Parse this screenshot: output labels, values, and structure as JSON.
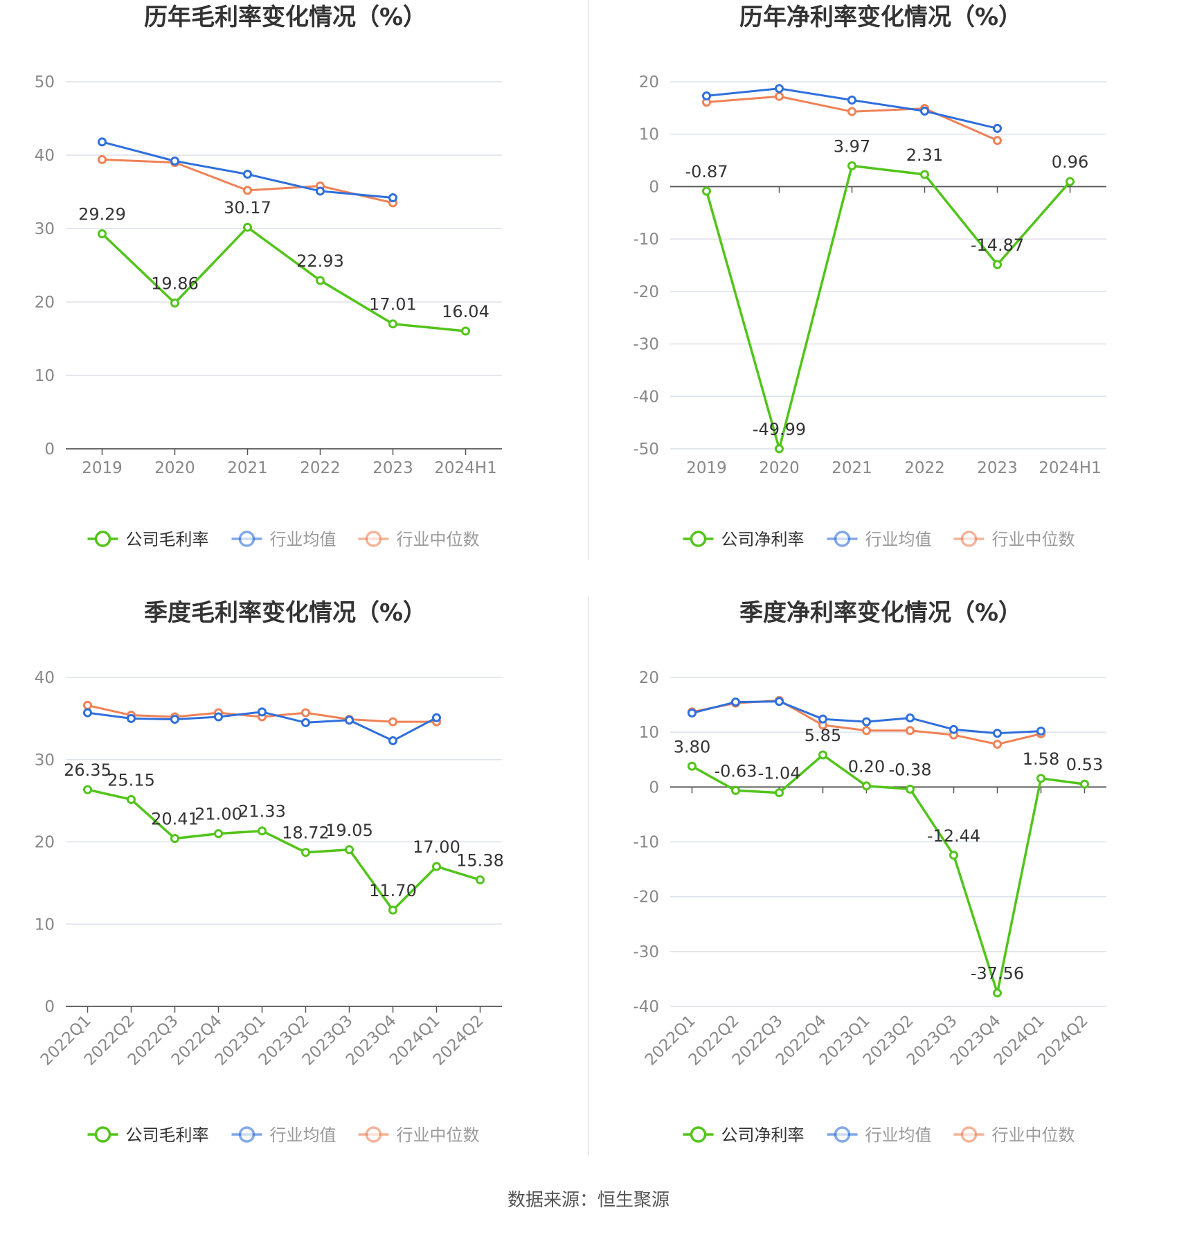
{
  "colors": {
    "company": "#52c41a",
    "average": "#2f6fdc",
    "median": "#f08156",
    "grid": "#dde1ea",
    "axis": "#555555",
    "tick_text": "#888888",
    "title_text": "#333333",
    "label_text": "#333333",
    "divider": "#e6e6e6"
  },
  "source_text": "数据来源：恒生聚源",
  "chart_data": [
    {
      "type": "line",
      "title": "历年毛利率变化情况（%）",
      "categories": [
        "2019",
        "2020",
        "2021",
        "2022",
        "2023",
        "2024H1"
      ],
      "yticks": [
        0,
        10,
        20,
        30,
        40,
        50
      ],
      "ylim": [
        0,
        50
      ],
      "rotate_labels": false,
      "legend_position": "bottom",
      "series": [
        {
          "name": "公司毛利率",
          "key": "company",
          "values": [
            29.29,
            19.86,
            30.17,
            22.93,
            17.01,
            16.04
          ],
          "labels": [
            "29.29",
            "19.86",
            "30.17",
            "22.93",
            "17.01",
            "16.04"
          ]
        },
        {
          "name": "行业均值",
          "key": "average",
          "values": [
            41.8,
            39.2,
            37.4,
            35.1,
            34.2,
            null
          ]
        },
        {
          "name": "行业中位数",
          "key": "median",
          "values": [
            39.4,
            39.0,
            35.2,
            35.8,
            33.5,
            null
          ]
        }
      ]
    },
    {
      "type": "line",
      "title": "历年净利率变化情况（%）",
      "categories": [
        "2019",
        "2020",
        "2021",
        "2022",
        "2023",
        "2024H1"
      ],
      "yticks": [
        -50,
        -40,
        -30,
        -20,
        -10,
        0,
        10,
        20
      ],
      "ylim": [
        -50,
        20
      ],
      "rotate_labels": false,
      "legend_position": "bottom",
      "series": [
        {
          "name": "公司净利率",
          "key": "company",
          "values": [
            -0.87,
            -49.99,
            3.97,
            2.31,
            -14.87,
            0.96
          ],
          "labels": [
            "-0.87",
            "-49.99",
            "3.97",
            "2.31",
            "-14.87",
            "0.96"
          ]
        },
        {
          "name": "行业均值",
          "key": "average",
          "values": [
            17.3,
            18.7,
            16.5,
            14.4,
            11.1,
            null
          ]
        },
        {
          "name": "行业中位数",
          "key": "median",
          "values": [
            16.1,
            17.2,
            14.3,
            14.9,
            8.8,
            null
          ]
        }
      ]
    },
    {
      "type": "line",
      "title": "季度毛利率变化情况（%）",
      "categories": [
        "2022Q1",
        "2022Q2",
        "2022Q3",
        "2022Q4",
        "2023Q1",
        "2023Q2",
        "2023Q3",
        "2023Q4",
        "2024Q1",
        "2024Q2"
      ],
      "yticks": [
        0,
        10,
        20,
        30,
        40
      ],
      "ylim": [
        0,
        40
      ],
      "rotate_labels": true,
      "legend_position": "bottom",
      "series": [
        {
          "name": "公司毛利率",
          "key": "company",
          "values": [
            26.35,
            25.15,
            20.41,
            21.0,
            21.33,
            18.72,
            19.05,
            11.7,
            17.0,
            15.38
          ],
          "labels": [
            "26.35",
            "25.15",
            "20.41",
            "21.00",
            "21.33",
            "18.72",
            "19.05",
            "11.70",
            "17.00",
            "15.38"
          ]
        },
        {
          "name": "行业均值",
          "key": "average",
          "values": [
            35.7,
            35.0,
            34.9,
            35.2,
            35.8,
            34.5,
            34.8,
            32.3,
            35.1,
            null
          ]
        },
        {
          "name": "行业中位数",
          "key": "median",
          "values": [
            36.6,
            35.4,
            35.2,
            35.7,
            35.2,
            35.7,
            34.9,
            34.6,
            34.6,
            null
          ]
        }
      ]
    },
    {
      "type": "line",
      "title": "季度净利率变化情况（%）",
      "categories": [
        "2022Q1",
        "2022Q2",
        "2022Q3",
        "2022Q4",
        "2023Q1",
        "2023Q2",
        "2023Q3",
        "2023Q4",
        "2024Q1",
        "2024Q2"
      ],
      "yticks": [
        -40,
        -30,
        -20,
        -10,
        0,
        10,
        20
      ],
      "ylim": [
        -40,
        20
      ],
      "rotate_labels": true,
      "legend_position": "bottom",
      "series": [
        {
          "name": "公司净利率",
          "key": "company",
          "values": [
            3.8,
            -0.63,
            -1.04,
            5.85,
            0.2,
            -0.38,
            -12.44,
            -37.56,
            1.58,
            0.53
          ],
          "labels": [
            "3.80",
            "-0.63",
            "-1.04",
            "5.85",
            "0.20",
            "-0.38",
            "-12.44",
            "-37.56",
            "1.58",
            "0.53"
          ]
        },
        {
          "name": "行业均值",
          "key": "average",
          "values": [
            13.5,
            15.5,
            15.6,
            12.4,
            11.9,
            12.6,
            10.5,
            9.8,
            10.2,
            null
          ]
        },
        {
          "name": "行业中位数",
          "key": "median",
          "values": [
            13.7,
            15.3,
            15.8,
            11.3,
            10.3,
            10.3,
            9.5,
            7.8,
            9.7,
            null
          ]
        }
      ]
    }
  ]
}
